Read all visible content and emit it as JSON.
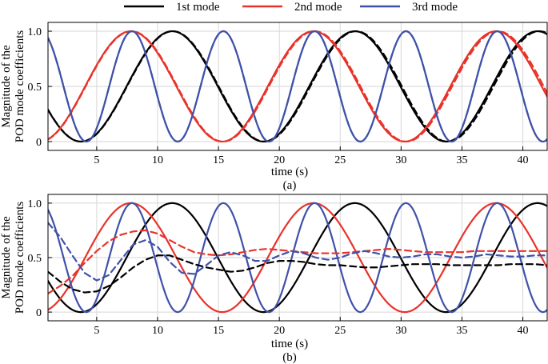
{
  "legend": [
    {
      "name": "1st mode",
      "color": "#000000"
    },
    {
      "name": "2nd mode",
      "color": "#e8332a"
    },
    {
      "name": "3rd mode",
      "color": "#3f51a8"
    }
  ],
  "chart_data": [
    {
      "type": "line",
      "panel_label": "(a)",
      "xlabel": "time (s)",
      "ylabel_line1": "Magnitude of the",
      "ylabel_line2": "POD mode coefficients",
      "xlim": [
        1,
        42
      ],
      "ylim": [
        -0.08,
        1.08
      ],
      "xticks": [
        5,
        10,
        15,
        20,
        25,
        30,
        35,
        40
      ],
      "yticks": [
        0,
        0.5,
        1.0
      ],
      "ytick_labels": [
        "0",
        "0.5",
        "1.0"
      ],
      "grid": true,
      "legend_position": "top",
      "series": [
        {
          "name": "1st mode",
          "color": "#000000",
          "style": "solid",
          "model": "sine",
          "params": {
            "period": 15,
            "peak": 11.2
          }
        },
        {
          "name": "1st mode",
          "color": "#000000",
          "style": "dashed",
          "model": "sine",
          "params": {
            "period": 15.05,
            "peak": 11.25
          }
        },
        {
          "name": "2nd mode",
          "color": "#e8332a",
          "style": "solid",
          "model": "sine",
          "params": {
            "period": 15,
            "peak": 7.8
          }
        },
        {
          "name": "2nd mode",
          "color": "#e8332a",
          "style": "dashed",
          "model": "sine",
          "params": {
            "period": 15.05,
            "peak": 7.85
          }
        },
        {
          "name": "3rd mode",
          "color": "#3f51a8",
          "style": "solid",
          "model": "sine",
          "params": {
            "period": 7.5,
            "peak": 7.9
          }
        },
        {
          "name": "3rd mode",
          "color": "#3f51a8",
          "style": "dashed",
          "model": "sine",
          "params": {
            "period": 7.5,
            "peak": 7.9
          }
        }
      ]
    },
    {
      "type": "line",
      "panel_label": "(b)",
      "xlabel": "time (s)",
      "ylabel_line1": "Magnitude of the",
      "ylabel_line2": "POD mode coefficients",
      "xlim": [
        1,
        42
      ],
      "ylim": [
        -0.08,
        1.08
      ],
      "xticks": [
        5,
        10,
        15,
        20,
        25,
        30,
        35,
        40
      ],
      "yticks": [
        0,
        0.5,
        1.0
      ],
      "ytick_labels": [
        "0",
        "0.5",
        "1.0"
      ],
      "grid": true,
      "series": [
        {
          "name": "1st mode",
          "color": "#000000",
          "style": "solid",
          "model": "sine",
          "params": {
            "period": 15,
            "peak": 11.2
          }
        },
        {
          "name": "2nd mode",
          "color": "#e8332a",
          "style": "solid",
          "model": "sine",
          "params": {
            "period": 15,
            "peak": 7.8
          }
        },
        {
          "name": "3rd mode",
          "color": "#3f51a8",
          "style": "solid",
          "model": "sine",
          "params": {
            "period": 7.5,
            "peak": 7.9
          }
        },
        {
          "name": "1st mode",
          "color": "#000000",
          "style": "dashed",
          "model": "points",
          "points": [
            [
              1,
              0.37
            ],
            [
              2,
              0.28
            ],
            [
              3,
              0.21
            ],
            [
              4,
              0.18
            ],
            [
              5,
              0.19
            ],
            [
              6,
              0.24
            ],
            [
              7,
              0.32
            ],
            [
              8,
              0.41
            ],
            [
              9,
              0.48
            ],
            [
              10,
              0.52
            ],
            [
              11,
              0.52
            ],
            [
              12,
              0.48
            ],
            [
              13,
              0.44
            ],
            [
              14,
              0.41
            ],
            [
              15,
              0.39
            ],
            [
              16,
              0.37
            ],
            [
              17,
              0.38
            ],
            [
              18,
              0.41
            ],
            [
              19,
              0.45
            ],
            [
              20,
              0.47
            ],
            [
              21,
              0.47
            ],
            [
              22,
              0.46
            ],
            [
              23,
              0.44
            ],
            [
              24,
              0.43
            ],
            [
              25,
              0.43
            ],
            [
              26,
              0.42
            ],
            [
              27,
              0.41
            ],
            [
              28,
              0.41
            ],
            [
              29,
              0.42
            ],
            [
              30,
              0.43
            ],
            [
              31,
              0.44
            ],
            [
              32,
              0.44
            ],
            [
              33,
              0.44
            ],
            [
              34,
              0.43
            ],
            [
              35,
              0.43
            ],
            [
              36,
              0.43
            ],
            [
              37,
              0.43
            ],
            [
              38,
              0.43
            ],
            [
              39,
              0.44
            ],
            [
              40,
              0.44
            ],
            [
              41,
              0.44
            ],
            [
              42,
              0.43
            ]
          ]
        },
        {
          "name": "2nd mode",
          "color": "#e8332a",
          "style": "dashed",
          "model": "points",
          "points": [
            [
              1,
              0.17
            ],
            [
              2,
              0.24
            ],
            [
              3,
              0.33
            ],
            [
              4,
              0.45
            ],
            [
              5,
              0.56
            ],
            [
              6,
              0.65
            ],
            [
              7,
              0.71
            ],
            [
              8,
              0.74
            ],
            [
              9,
              0.75
            ],
            [
              10,
              0.72
            ],
            [
              11,
              0.66
            ],
            [
              12,
              0.6
            ],
            [
              13,
              0.55
            ],
            [
              14,
              0.53
            ],
            [
              15,
              0.52
            ],
            [
              16,
              0.53
            ],
            [
              17,
              0.55
            ],
            [
              18,
              0.57
            ],
            [
              19,
              0.58
            ],
            [
              20,
              0.57
            ],
            [
              21,
              0.56
            ],
            [
              22,
              0.55
            ],
            [
              23,
              0.54
            ],
            [
              24,
              0.54
            ],
            [
              25,
              0.54
            ],
            [
              26,
              0.55
            ],
            [
              27,
              0.56
            ],
            [
              28,
              0.57
            ],
            [
              29,
              0.58
            ],
            [
              30,
              0.57
            ],
            [
              31,
              0.56
            ],
            [
              32,
              0.55
            ],
            [
              33,
              0.55
            ],
            [
              34,
              0.55
            ],
            [
              35,
              0.55
            ],
            [
              36,
              0.56
            ],
            [
              37,
              0.56
            ],
            [
              38,
              0.56
            ],
            [
              39,
              0.56
            ],
            [
              40,
              0.56
            ],
            [
              41,
              0.56
            ],
            [
              42,
              0.56
            ]
          ]
        },
        {
          "name": "3rd mode",
          "color": "#3f51a8",
          "style": "dashed",
          "model": "points",
          "points": [
            [
              1,
              0.82
            ],
            [
              2,
              0.69
            ],
            [
              3,
              0.52
            ],
            [
              4,
              0.36
            ],
            [
              5,
              0.29
            ],
            [
              6,
              0.34
            ],
            [
              7,
              0.48
            ],
            [
              8,
              0.62
            ],
            [
              9,
              0.66
            ],
            [
              10,
              0.6
            ],
            [
              11,
              0.46
            ],
            [
              12,
              0.36
            ],
            [
              13,
              0.35
            ],
            [
              14,
              0.43
            ],
            [
              15,
              0.52
            ],
            [
              16,
              0.55
            ],
            [
              17,
              0.52
            ],
            [
              18,
              0.47
            ],
            [
              19,
              0.47
            ],
            [
              20,
              0.52
            ],
            [
              21,
              0.56
            ],
            [
              22,
              0.54
            ],
            [
              23,
              0.5
            ],
            [
              24,
              0.48
            ],
            [
              25,
              0.5
            ],
            [
              26,
              0.54
            ],
            [
              27,
              0.56
            ],
            [
              28,
              0.54
            ],
            [
              29,
              0.51
            ],
            [
              30,
              0.5
            ],
            [
              31,
              0.51
            ],
            [
              32,
              0.53
            ],
            [
              33,
              0.53
            ],
            [
              34,
              0.51
            ],
            [
              35,
              0.5
            ],
            [
              36,
              0.51
            ],
            [
              37,
              0.53
            ],
            [
              38,
              0.52
            ],
            [
              39,
              0.51
            ],
            [
              40,
              0.51
            ],
            [
              41,
              0.52
            ],
            [
              42,
              0.52
            ]
          ]
        }
      ]
    }
  ]
}
